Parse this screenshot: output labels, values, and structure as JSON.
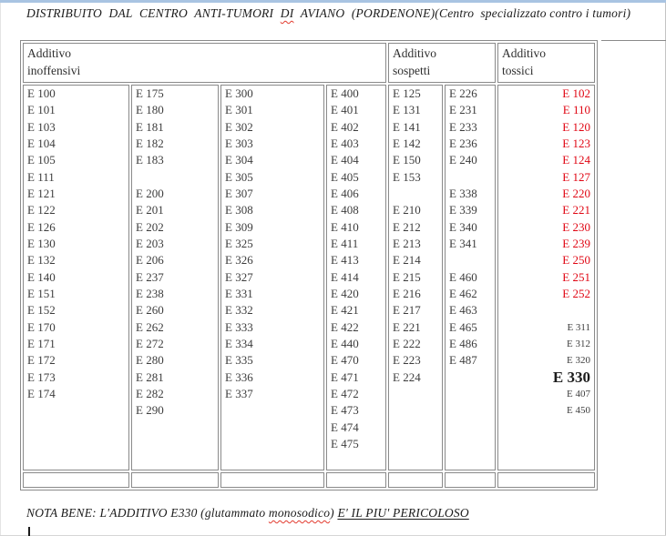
{
  "colors": {
    "accent_red": "#e00613",
    "border_gray": "#8a8a8a",
    "top_band_blue": "#a9c4e2",
    "spell_red": "#e23a2e"
  },
  "page": {
    "title_parts": [
      {
        "text": "DISTRIBUITO DAL CENTRO ANTI-TUMORI ",
        "style": "wide"
      },
      {
        "text": "DI",
        "style": "wide misspelled"
      },
      {
        "text": " AVIANO (PORDENONE)",
        "style": "wide"
      },
      {
        "text": "(Centro  specializzato contro i tumori)",
        "style": ""
      }
    ],
    "note_parts": [
      {
        "text": "NOTA BENE: L'ADDITIVO E330 (glutammato ",
        "style": ""
      },
      {
        "text": "monosodico",
        "style": "misspelled"
      },
      {
        "text": ") ",
        "style": ""
      },
      {
        "text": "E' IL PIU' PERICOLOSO",
        "style": "underline"
      }
    ]
  },
  "table": {
    "headers": [
      {
        "line1": "Additivo",
        "line2": "inoffensivi"
      },
      {
        "line1": "Additivo",
        "line2": "sospetti"
      },
      {
        "line1": "Additivo",
        "line2": "tossici"
      }
    ],
    "columns": [
      {
        "group": "inoffensivi",
        "lines": [
          "E 100",
          "E 101",
          "E 103",
          "E 104",
          "E 105",
          "E 111",
          "E 121",
          "E 122",
          "E 126",
          "E 130",
          "E 132",
          "E 140",
          "E 151",
          "E 152",
          "E 170",
          "E 171",
          "E 172",
          "E 173",
          "E 174"
        ]
      },
      {
        "group": "inoffensivi",
        "lines": [
          "E 175",
          "E 180",
          "E 181",
          "E 182",
          "E 183",
          "",
          "E 200",
          "E 201",
          "E 202",
          "E 203",
          "E 206",
          "E 237",
          "E 238",
          "E 260",
          "E 262",
          "E 272",
          "E 280",
          "E 281",
          "E 282",
          "E 290"
        ]
      },
      {
        "group": "inoffensivi",
        "lines": [
          "E 300",
          "E 301",
          "E 302",
          "E 303",
          "E 304",
          "E 305",
          "E 307",
          "E 308",
          "E 309",
          "E 325",
          "E 326",
          "E 327",
          "E 331",
          "E 332",
          "E 333",
          "E 334",
          "E 335",
          "E 336",
          "E 337"
        ]
      },
      {
        "group": "inoffensivi",
        "lines": [
          "E 400",
          "E 401",
          "E 402",
          "E 403",
          "E 404",
          "E 405",
          "E 406",
          "E 408",
          "E 410",
          "E 411",
          "E 413",
          "E 414",
          "E 420",
          "E 421",
          "E 422",
          "E 440",
          "E 470",
          "E 471",
          "E 472",
          "E 473",
          "E 474",
          "E 475"
        ]
      },
      {
        "group": "sospetti",
        "lines": [
          "E 125",
          "E 131",
          "E 141",
          "E 142",
          "E 150",
          "E 153",
          "",
          "E 210",
          "E 212",
          "E 213",
          "E 214",
          "E 215",
          "E 216",
          "E 217",
          "E 221",
          "E 222",
          "E 223",
          "E 224"
        ]
      },
      {
        "group": "sospetti",
        "lines": [
          "E 226",
          "E 231",
          "E 233",
          "E 236",
          "E 240",
          "",
          "E 338",
          "E 339",
          "E 340",
          "E 341",
          "",
          "E 460",
          "E 462",
          "E 463",
          "E 465",
          "E 486",
          "E 487"
        ]
      },
      {
        "group": "tossici",
        "lines": [
          {
            "text": "E 102",
            "style": "red"
          },
          {
            "text": "E 110",
            "style": "red"
          },
          {
            "text": "E 120",
            "style": "red"
          },
          {
            "text": "E 123",
            "style": "red"
          },
          {
            "text": "E 124",
            "style": "red"
          },
          {
            "text": "E 127",
            "style": "red"
          },
          {
            "text": "E 220",
            "style": "red"
          },
          {
            "text": "E 221",
            "style": "red"
          },
          {
            "text": "E 230",
            "style": "red"
          },
          {
            "text": "E 239",
            "style": "red"
          },
          {
            "text": "E 250",
            "style": "red"
          },
          {
            "text": "E 251",
            "style": "red"
          },
          {
            "text": "E 252",
            "style": "red"
          },
          {
            "text": "",
            "style": ""
          },
          {
            "text": "E 311",
            "style": "small"
          },
          {
            "text": "E 312",
            "style": "small"
          },
          {
            "text": "E 320",
            "style": "small"
          },
          {
            "text": "E 330",
            "style": "big"
          },
          {
            "text": "E 407",
            "style": "small"
          },
          {
            "text": "E 450",
            "style": "small"
          }
        ]
      }
    ]
  }
}
